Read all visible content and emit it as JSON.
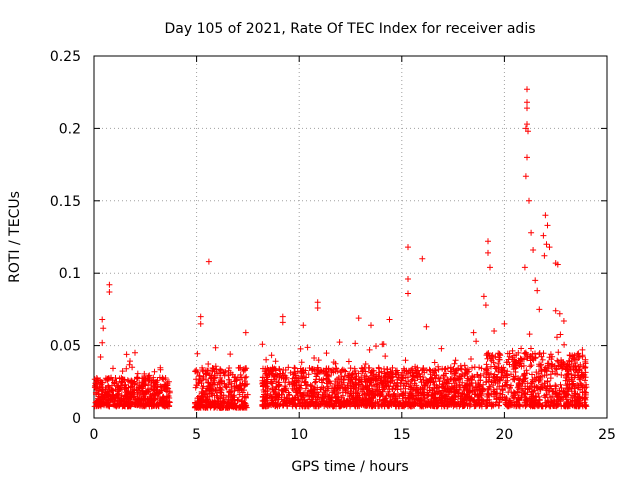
{
  "chart_data": {
    "type": "scatter",
    "title": "Day 105 of 2021, Rate Of TEC Index for receiver adis",
    "xlabel": "GPS time / hours",
    "ylabel": "ROTI / TECUs",
    "xlim": [
      0,
      25
    ],
    "ylim": [
      0,
      0.25
    ],
    "xticks": [
      0,
      5,
      10,
      15,
      20,
      25
    ],
    "yticks": [
      0,
      0.05,
      0.1,
      0.15,
      0.2,
      0.25
    ],
    "xtick_labels": [
      "0",
      "5",
      "10",
      "15",
      "20",
      "25"
    ],
    "ytick_labels": [
      "0",
      "0.05",
      "0.1",
      "0.15",
      "0.2",
      "0.25"
    ],
    "grid": true,
    "marker": "+",
    "color": "#ff0000",
    "series": [
      {
        "segments": [
          {
            "x_range": [
              0.0,
              3.7
            ],
            "y_base": [
              0.008,
              0.028
            ]
          },
          {
            "x_range": [
              4.9,
              7.5
            ],
            "y_base": [
              0.007,
              0.035
            ]
          },
          {
            "x_range": [
              8.2,
              19.0
            ],
            "y_base": [
              0.008,
              0.035
            ]
          },
          {
            "x_range": [
              19.1,
              24.0
            ],
            "y_base": [
              0.008,
              0.045
            ]
          }
        ],
        "outliers": [
          {
            "x": 0.4,
            "y": 0.068
          },
          {
            "x": 0.45,
            "y": 0.062
          },
          {
            "x": 0.4,
            "y": 0.052
          },
          {
            "x": 0.75,
            "y": 0.092
          },
          {
            "x": 0.75,
            "y": 0.087
          },
          {
            "x": 2.0,
            "y": 0.045
          },
          {
            "x": 5.2,
            "y": 0.07
          },
          {
            "x": 5.2,
            "y": 0.065
          },
          {
            "x": 5.6,
            "y": 0.108
          },
          {
            "x": 7.4,
            "y": 0.059
          },
          {
            "x": 9.2,
            "y": 0.07
          },
          {
            "x": 9.2,
            "y": 0.066
          },
          {
            "x": 10.2,
            "y": 0.064
          },
          {
            "x": 10.9,
            "y": 0.08
          },
          {
            "x": 10.9,
            "y": 0.076
          },
          {
            "x": 12.9,
            "y": 0.069
          },
          {
            "x": 13.5,
            "y": 0.064
          },
          {
            "x": 14.4,
            "y": 0.068
          },
          {
            "x": 15.3,
            "y": 0.118
          },
          {
            "x": 15.3,
            "y": 0.096
          },
          {
            "x": 15.3,
            "y": 0.086
          },
          {
            "x": 16.0,
            "y": 0.11
          },
          {
            "x": 16.2,
            "y": 0.063
          },
          {
            "x": 18.5,
            "y": 0.059
          },
          {
            "x": 19.2,
            "y": 0.122
          },
          {
            "x": 19.2,
            "y": 0.114
          },
          {
            "x": 19.3,
            "y": 0.104
          },
          {
            "x": 19.0,
            "y": 0.084
          },
          {
            "x": 19.1,
            "y": 0.078
          },
          {
            "x": 20.0,
            "y": 0.065
          },
          {
            "x": 21.1,
            "y": 0.227
          },
          {
            "x": 21.1,
            "y": 0.218
          },
          {
            "x": 21.1,
            "y": 0.214
          },
          {
            "x": 21.1,
            "y": 0.203
          },
          {
            "x": 21.05,
            "y": 0.2
          },
          {
            "x": 21.15,
            "y": 0.198
          },
          {
            "x": 21.1,
            "y": 0.18
          },
          {
            "x": 21.05,
            "y": 0.167
          },
          {
            "x": 21.2,
            "y": 0.15
          },
          {
            "x": 21.3,
            "y": 0.128
          },
          {
            "x": 21.4,
            "y": 0.116
          },
          {
            "x": 21.0,
            "y": 0.104
          },
          {
            "x": 21.5,
            "y": 0.095
          },
          {
            "x": 21.6,
            "y": 0.088
          },
          {
            "x": 21.7,
            "y": 0.075
          },
          {
            "x": 22.0,
            "y": 0.14
          },
          {
            "x": 22.1,
            "y": 0.133
          },
          {
            "x": 21.9,
            "y": 0.126
          },
          {
            "x": 22.05,
            "y": 0.12
          },
          {
            "x": 21.95,
            "y": 0.112
          },
          {
            "x": 22.2,
            "y": 0.118
          },
          {
            "x": 22.5,
            "y": 0.107
          },
          {
            "x": 22.6,
            "y": 0.106
          },
          {
            "x": 22.5,
            "y": 0.074
          },
          {
            "x": 22.7,
            "y": 0.072
          },
          {
            "x": 22.9,
            "y": 0.067
          },
          {
            "x": 23.8,
            "y": 0.047
          }
        ]
      }
    ]
  }
}
